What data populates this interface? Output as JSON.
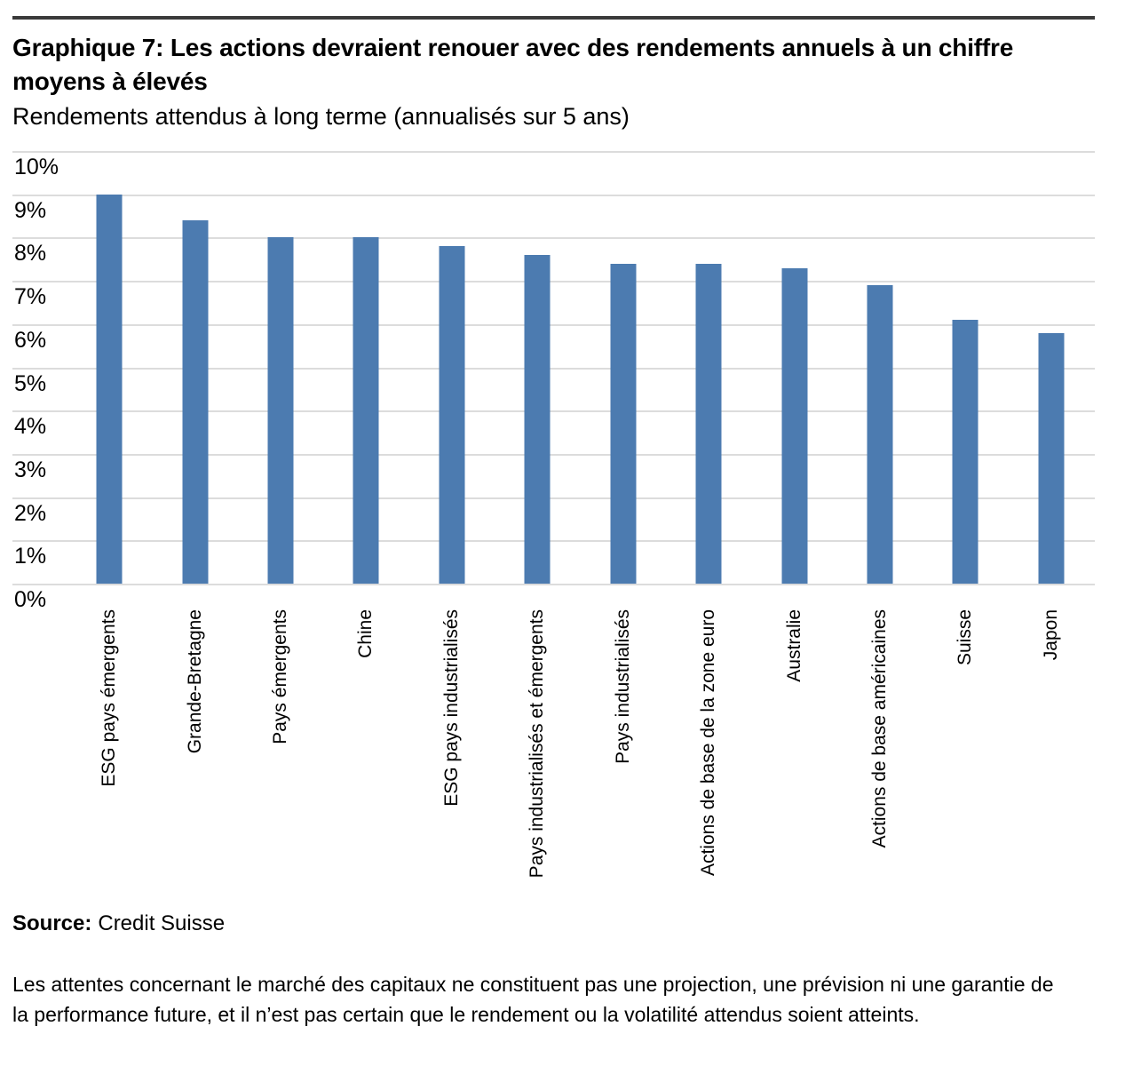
{
  "header": {
    "title": "Graphique 7: Les actions devraient renouer avec des rendements annuels à un chiffre moyens à élevés",
    "subtitle": "Rendements attendus à long terme (annualisés sur 5 ans)"
  },
  "chart_data": {
    "type": "bar",
    "title": "Graphique 7: Les actions devraient renouer avec des rendements annuels à un chiffre moyens à élevés",
    "subtitle": "Rendements attendus à long terme (annualisés sur 5 ans)",
    "categories": [
      "ESG pays émergents",
      "Grande-Bretagne",
      "Pays émergents",
      "Chine",
      "ESG pays industrialisés",
      "Pays industrialisés et émergents",
      "Pays industrialisés",
      "Actions de base de la zone euro",
      "Australie",
      "Actions de base américaines",
      "Suisse",
      "Japon"
    ],
    "values": [
      9.0,
      8.4,
      8.0,
      8.0,
      7.8,
      7.6,
      7.4,
      7.4,
      7.3,
      6.9,
      6.1,
      5.8
    ],
    "unit": "%",
    "xlabel": "",
    "ylabel": "",
    "ylim": [
      0,
      10
    ],
    "ytick_labels": [
      "10%",
      "9%",
      "8%",
      "7%",
      "6%",
      "5%",
      "4%",
      "3%",
      "2%",
      "1%",
      "0%"
    ],
    "grid": true,
    "legend": false,
    "bar_color": "#4C7BB0",
    "gridline_color": "#DCDCDC"
  },
  "colors": {
    "top_rule": "#3A3A3A",
    "text": "#000000"
  },
  "source": {
    "label": "Source:",
    "text": "Credit Suisse"
  },
  "footer": {
    "text": "Les attentes concernant le marché des capitaux ne constituent pas une projection, une prévision ni une garantie de la performance future, et il n’est pas certain que le rendement ou la volatilité attendus soient atteints."
  }
}
